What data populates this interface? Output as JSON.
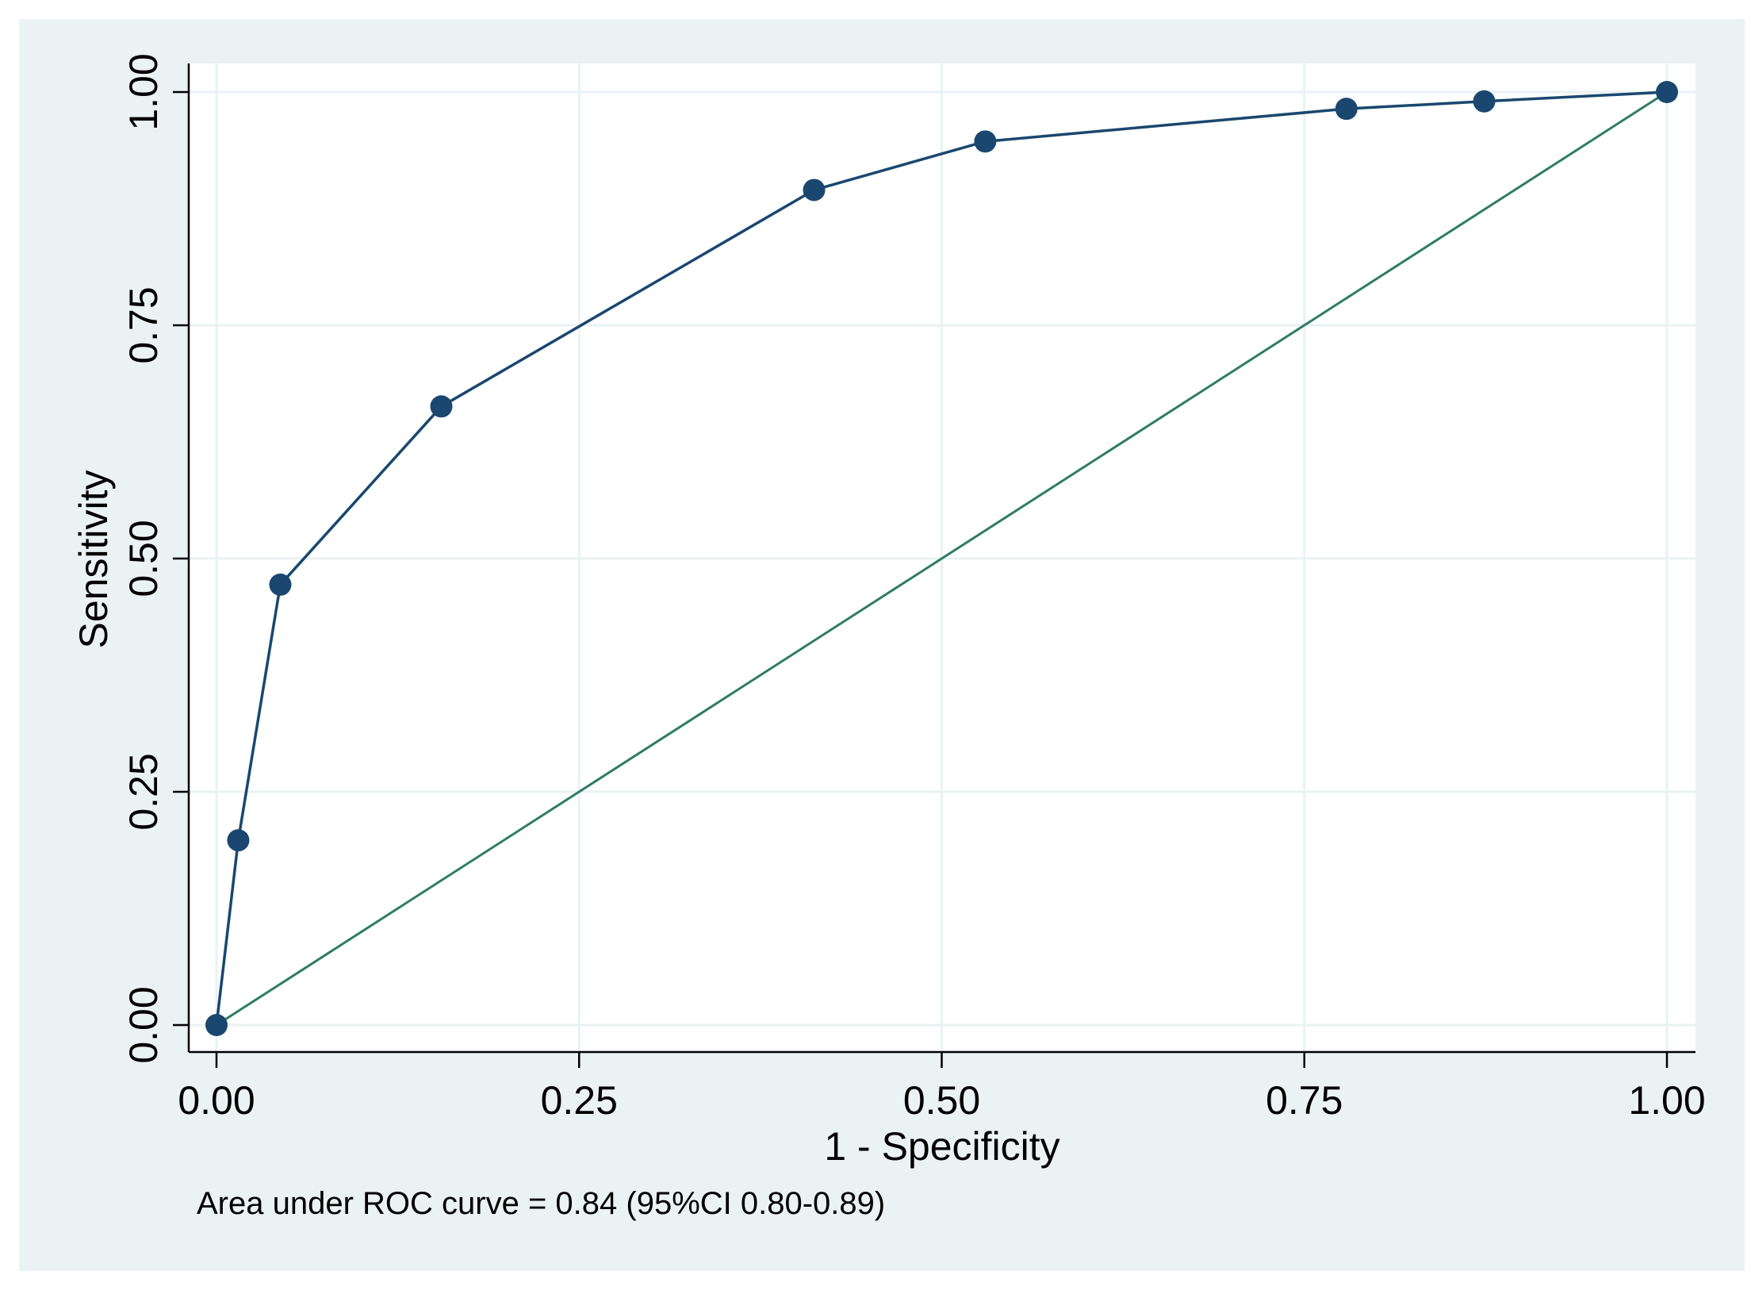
{
  "chart_data": {
    "type": "line",
    "title": "",
    "xlabel": "1 - Specificity",
    "ylabel": "Sensitivity",
    "xlim": [
      0,
      1
    ],
    "ylim": [
      0,
      1
    ],
    "x_ticks": [
      0,
      0.25,
      0.5,
      0.75,
      1
    ],
    "x_tick_labels": [
      "0.00",
      "0.25",
      "0.50",
      "0.75",
      "1.00"
    ],
    "y_ticks": [
      0,
      0.25,
      0.5,
      0.75,
      1
    ],
    "y_tick_labels": [
      "0.00",
      "0.25",
      "0.50",
      "0.75",
      "1.00"
    ],
    "grid": true,
    "series": [
      {
        "markers": true,
        "color": "#1a476f",
        "x": [
          0.0,
          0.015,
          0.044,
          0.155,
          0.412,
          0.53,
          0.779,
          0.874,
          1.0
        ],
        "y": [
          0.0,
          0.198,
          0.472,
          0.663,
          0.895,
          0.947,
          0.982,
          0.99,
          1.0
        ]
      },
      {
        "markers": false,
        "color": "#2e7d62",
        "x": [
          0,
          1
        ],
        "y": [
          0,
          1
        ]
      }
    ],
    "annotation": "Area under ROC curve = 0.84 (95%CI 0.80-0.89)"
  },
  "colors": {
    "outer_background": "#eaf2f3",
    "plot_background": "#ffffff",
    "grid": "#eaf2f3",
    "axis": "#000000"
  }
}
